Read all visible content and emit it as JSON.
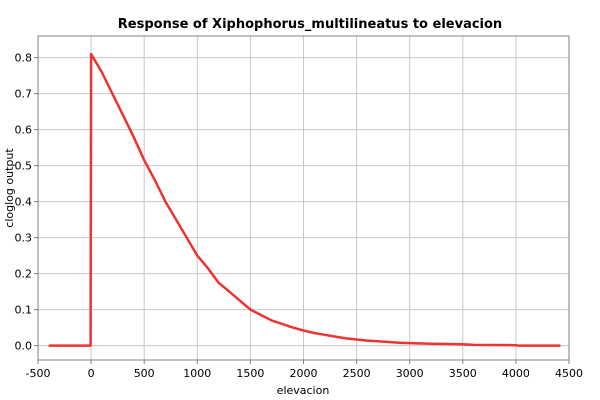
{
  "chart_data": {
    "type": "line",
    "title": "Response of Xiphophorus_multilineatus to elevacion",
    "xlabel": "elevacion",
    "ylabel": "cloglog output",
    "xlim": [
      -500,
      4500
    ],
    "ylim": [
      -0.04,
      0.86
    ],
    "xticks": [
      -500,
      0,
      500,
      1000,
      1500,
      2000,
      2500,
      3000,
      3500,
      4000,
      4500
    ],
    "xtick_labels": [
      "-500",
      "0",
      "500",
      "1000",
      "1500",
      "2000",
      "2500",
      "3000",
      "3500",
      "4000",
      "4500"
    ],
    "yticks": [
      0.0,
      0.1,
      0.2,
      0.3,
      0.4,
      0.5,
      0.6,
      0.7,
      0.8
    ],
    "ytick_labels": [
      "0.0",
      "0.1",
      "0.2",
      "0.3",
      "0.4",
      "0.5",
      "0.6",
      "0.7",
      "0.8"
    ],
    "grid": true,
    "series": [
      {
        "color": "#ee3333",
        "x": [
          -390,
          -10,
          -5,
          0,
          100,
          200,
          300,
          400,
          500,
          600,
          700,
          800,
          900,
          1000,
          1100,
          1200,
          1300,
          1400,
          1500,
          1600,
          1700,
          1800,
          1900,
          2000,
          2100,
          2200,
          2300,
          2400,
          2500,
          2600,
          2700,
          2800,
          2900,
          3000,
          3200,
          3500,
          3600,
          4000,
          4020,
          4410
        ],
        "y": [
          0.0,
          0.0,
          0.0,
          0.81,
          0.76,
          0.7,
          0.64,
          0.58,
          0.515,
          0.46,
          0.4,
          0.35,
          0.3,
          0.25,
          0.215,
          0.175,
          0.15,
          0.125,
          0.1,
          0.085,
          0.07,
          0.06,
          0.05,
          0.042,
          0.035,
          0.03,
          0.025,
          0.02,
          0.017,
          0.014,
          0.012,
          0.01,
          0.008,
          0.007,
          0.005,
          0.004,
          0.002,
          0.001,
          0.0,
          0.0
        ]
      }
    ]
  }
}
